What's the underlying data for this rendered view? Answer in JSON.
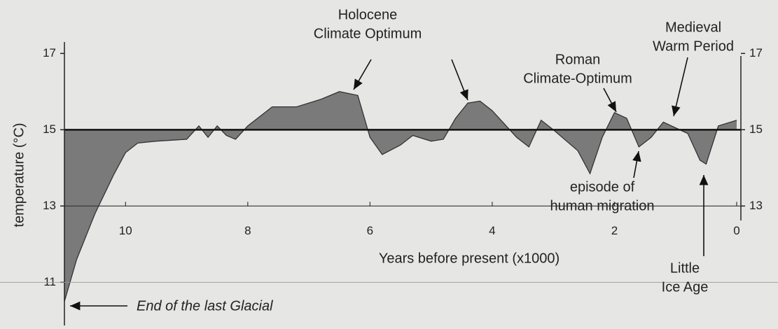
{
  "chart_data": {
    "type": "area",
    "xlabel": "Years before present (x1000)",
    "ylabel": "temperature (°C)",
    "x": [
      11.0,
      10.8,
      10.5,
      10.2,
      10.0,
      9.8,
      9.5,
      9.0,
      8.8,
      8.65,
      8.5,
      8.35,
      8.2,
      8.0,
      7.6,
      7.2,
      6.8,
      6.5,
      6.2,
      6.0,
      5.8,
      5.5,
      5.3,
      5.0,
      4.8,
      4.6,
      4.4,
      4.2,
      4.0,
      3.6,
      3.4,
      3.2,
      3.0,
      2.6,
      2.4,
      2.2,
      2.0,
      1.8,
      1.6,
      1.4,
      1.2,
      1.0,
      0.8,
      0.6,
      0.5,
      0.4,
      0.3,
      0.0
    ],
    "values": [
      10.5,
      11.6,
      12.8,
      13.8,
      14.4,
      14.65,
      14.7,
      14.75,
      15.1,
      14.8,
      15.1,
      14.85,
      14.75,
      15.1,
      15.6,
      15.6,
      15.8,
      16.0,
      15.9,
      14.8,
      14.35,
      14.6,
      14.85,
      14.7,
      14.75,
      15.3,
      15.7,
      15.75,
      15.5,
      14.8,
      14.55,
      15.25,
      15.0,
      14.45,
      13.85,
      14.8,
      15.45,
      15.3,
      14.55,
      14.8,
      15.2,
      15.05,
      14.9,
      14.2,
      14.1,
      14.6,
      15.1,
      15.25
    ],
    "color": "#7a7a7a",
    "reference_line": 15,
    "xlim": [
      11,
      0
    ],
    "xticks": [
      10,
      8,
      6,
      4,
      2,
      0
    ],
    "ylim": [
      10.4,
      17.3
    ],
    "yticks": [
      11,
      13,
      15,
      17
    ],
    "annotations": [
      {
        "text": [
          "Holocene",
          "Climate Optimum"
        ]
      },
      {
        "text": [
          "Roman",
          "Climate-Optimum"
        ]
      },
      {
        "text": [
          "Medieval",
          "Warm Period"
        ]
      },
      {
        "text": [
          "episode of",
          "human migration"
        ]
      },
      {
        "text": [
          "Little",
          "Ice Age"
        ]
      },
      {
        "text": [
          "End of the last Glacial"
        ]
      }
    ]
  }
}
